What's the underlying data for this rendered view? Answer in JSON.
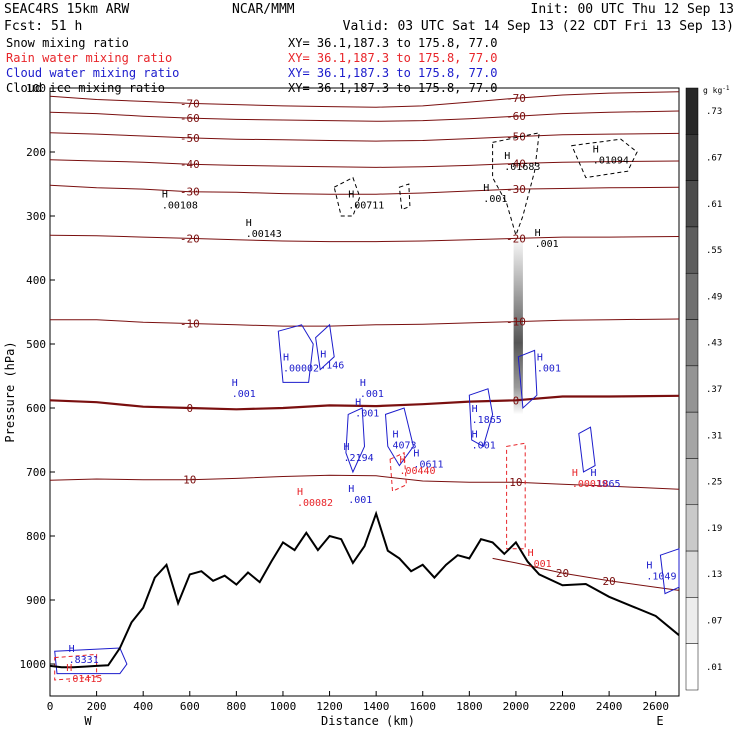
{
  "header": {
    "left1": "SEAC4RS 15km ARW",
    "left2": "Fcst:   51 h",
    "center": "NCAR/MMM",
    "init": "Init: 00 UTC Thu 12 Sep 13",
    "valid": "Valid: 03 UTC Sat 14 Sep 13 (22 CDT Fri 13 Sep 13)"
  },
  "fields": [
    {
      "name": "Snow mixing ratio",
      "xy": "XY=  36.1,187.3 to 175.8, 77.0",
      "color": "#000000"
    },
    {
      "name": "Rain water mixing ratio",
      "xy": "XY=  36.1,187.3 to 175.8, 77.0",
      "color": "#e8252a"
    },
    {
      "name": "Cloud water mixing ratio",
      "xy": "XY=  36.1,187.3 to 175.8, 77.0",
      "color": "#1c1ccc"
    },
    {
      "name": "Cloud ice mixing ratio",
      "xy": "XY=  36.1,187.3 to 175.8, 77.0",
      "color": "#000000"
    }
  ],
  "colors": {
    "temperature": "#7a0f0f",
    "terrain": "#000000",
    "cloud_water": "#1c1ccc",
    "rain": "#e8252a",
    "snow": "#000000"
  },
  "colorbar": {
    "unit": "g kg",
    "unit_exp": "-1",
    "ticks": [
      ".73",
      ".67",
      ".61",
      ".55",
      ".49",
      ".43",
      ".37",
      ".31",
      ".25",
      ".19",
      ".13",
      ".07",
      ".01"
    ]
  },
  "chart_data": {
    "type": "contour",
    "xlabel": "Distance (km)",
    "ylabel": "Pressure (hPa)",
    "xlim": [
      0,
      2700
    ],
    "ylim": [
      1050,
      100
    ],
    "x_ticks": [
      0,
      200,
      400,
      600,
      800,
      1000,
      1200,
      1400,
      1600,
      1800,
      2000,
      2200,
      2400,
      2600
    ],
    "y_ticks": [
      200,
      300,
      400,
      500,
      600,
      700,
      800,
      900,
      1000
    ],
    "endpoints": {
      "left": "W",
      "right": "E"
    },
    "top_y_label": "100",
    "isotherms": [
      {
        "value": -70,
        "points": [
          [
            0,
            113
          ],
          [
            200,
            118
          ],
          [
            400,
            121
          ],
          [
            600,
            124
          ],
          [
            800,
            126
          ],
          [
            1000,
            128
          ],
          [
            1200,
            129
          ],
          [
            1400,
            130
          ],
          [
            1600,
            128
          ],
          [
            1800,
            122
          ],
          [
            2000,
            116
          ],
          [
            2200,
            111
          ],
          [
            2400,
            108
          ],
          [
            2700,
            106
          ]
        ]
      },
      {
        "value": -60,
        "points": [
          [
            0,
            138
          ],
          [
            200,
            140
          ],
          [
            400,
            144
          ],
          [
            600,
            147
          ],
          [
            800,
            149
          ],
          [
            1000,
            150
          ],
          [
            1200,
            151
          ],
          [
            1400,
            152
          ],
          [
            1600,
            151
          ],
          [
            1800,
            148
          ],
          [
            2000,
            144
          ],
          [
            2200,
            140
          ],
          [
            2400,
            138
          ],
          [
            2700,
            136
          ]
        ]
      },
      {
        "value": -50,
        "points": [
          [
            0,
            170
          ],
          [
            200,
            172
          ],
          [
            400,
            175
          ],
          [
            600,
            178
          ],
          [
            800,
            180
          ],
          [
            1000,
            181
          ],
          [
            1200,
            182
          ],
          [
            1400,
            183
          ],
          [
            1600,
            182
          ],
          [
            1800,
            179
          ],
          [
            2000,
            176
          ],
          [
            2200,
            173
          ],
          [
            2400,
            172
          ],
          [
            2700,
            171
          ]
        ]
      },
      {
        "value": -40,
        "points": [
          [
            0,
            212
          ],
          [
            200,
            214
          ],
          [
            400,
            216
          ],
          [
            600,
            219
          ],
          [
            800,
            221
          ],
          [
            1000,
            222
          ],
          [
            1200,
            223
          ],
          [
            1400,
            224
          ],
          [
            1600,
            223
          ],
          [
            1800,
            221
          ],
          [
            2000,
            218
          ],
          [
            2200,
            216
          ],
          [
            2400,
            215
          ],
          [
            2700,
            214
          ]
        ]
      },
      {
        "value": -30,
        "points": [
          [
            0,
            252
          ],
          [
            200,
            256
          ],
          [
            400,
            258
          ],
          [
            600,
            262
          ],
          [
            800,
            263
          ],
          [
            1000,
            265
          ],
          [
            1200,
            266
          ],
          [
            1400,
            266
          ],
          [
            1600,
            264
          ],
          [
            1800,
            261
          ],
          [
            2000,
            258
          ],
          [
            2200,
            257
          ],
          [
            2400,
            256
          ],
          [
            2700,
            255
          ]
        ]
      },
      {
        "value": -20,
        "points": [
          [
            0,
            330
          ],
          [
            200,
            331
          ],
          [
            400,
            333
          ],
          [
            600,
            335
          ],
          [
            800,
            337
          ],
          [
            1000,
            339
          ],
          [
            1200,
            340
          ],
          [
            1400,
            340
          ],
          [
            1600,
            339
          ],
          [
            1800,
            337
          ],
          [
            2000,
            335
          ],
          [
            2200,
            333
          ],
          [
            2400,
            333
          ],
          [
            2700,
            332
          ]
        ]
      },
      {
        "value": -10,
        "points": [
          [
            0,
            462
          ],
          [
            200,
            462
          ],
          [
            400,
            466
          ],
          [
            600,
            468
          ],
          [
            800,
            470
          ],
          [
            1000,
            472
          ],
          [
            1200,
            472
          ],
          [
            1400,
            470
          ],
          [
            1600,
            469
          ],
          [
            1800,
            467
          ],
          [
            2000,
            465
          ],
          [
            2200,
            463
          ],
          [
            2400,
            462
          ],
          [
            2700,
            461
          ]
        ]
      },
      {
        "value": 0,
        "points": [
          [
            0,
            588
          ],
          [
            200,
            591
          ],
          [
            400,
            598
          ],
          [
            600,
            600
          ],
          [
            800,
            602
          ],
          [
            1000,
            600
          ],
          [
            1200,
            596
          ],
          [
            1400,
            597
          ],
          [
            1600,
            594
          ],
          [
            1800,
            590
          ],
          [
            2000,
            588
          ],
          [
            2200,
            582
          ],
          [
            2400,
            582
          ],
          [
            2700,
            581
          ]
        ]
      },
      {
        "value": 10,
        "points": [
          [
            0,
            713
          ],
          [
            200,
            711
          ],
          [
            400,
            712
          ],
          [
            600,
            712
          ],
          [
            800,
            710
          ],
          [
            1000,
            707
          ],
          [
            1200,
            705
          ],
          [
            1400,
            706
          ],
          [
            1600,
            714
          ],
          [
            1800,
            716
          ],
          [
            2000,
            716
          ],
          [
            2200,
            719
          ],
          [
            2400,
            722
          ],
          [
            2700,
            727
          ]
        ]
      },
      {
        "value": 20,
        "points": [
          [
            1900,
            835
          ],
          [
            2000,
            842
          ],
          [
            2200,
            858
          ],
          [
            2400,
            870
          ],
          [
            2600,
            880
          ],
          [
            2700,
            885
          ]
        ]
      }
    ],
    "terrain": [
      [
        0,
        1003
      ],
      [
        50,
        1005
      ],
      [
        100,
        1005
      ],
      [
        150,
        1004
      ],
      [
        200,
        1003
      ],
      [
        250,
        1002
      ],
      [
        300,
        975
      ],
      [
        350,
        935
      ],
      [
        400,
        912
      ],
      [
        450,
        865
      ],
      [
        500,
        845
      ],
      [
        550,
        905
      ],
      [
        600,
        860
      ],
      [
        650,
        855
      ],
      [
        700,
        870
      ],
      [
        750,
        862
      ],
      [
        800,
        876
      ],
      [
        850,
        857
      ],
      [
        900,
        872
      ],
      [
        950,
        840
      ],
      [
        1000,
        810
      ],
      [
        1050,
        822
      ],
      [
        1100,
        795
      ],
      [
        1150,
        822
      ],
      [
        1200,
        800
      ],
      [
        1250,
        805
      ],
      [
        1300,
        842
      ],
      [
        1350,
        816
      ],
      [
        1400,
        765
      ],
      [
        1450,
        823
      ],
      [
        1500,
        835
      ],
      [
        1550,
        855
      ],
      [
        1600,
        845
      ],
      [
        1650,
        865
      ],
      [
        1700,
        845
      ],
      [
        1750,
        830
      ],
      [
        1800,
        835
      ],
      [
        1850,
        805
      ],
      [
        1900,
        810
      ],
      [
        1950,
        828
      ],
      [
        2000,
        810
      ],
      [
        2050,
        840
      ],
      [
        2100,
        860
      ],
      [
        2200,
        877
      ],
      [
        2300,
        875
      ],
      [
        2400,
        895
      ],
      [
        2500,
        910
      ],
      [
        2600,
        925
      ],
      [
        2700,
        955
      ]
    ],
    "maxima": [
      {
        "field": "snow",
        "x": 480,
        "y": 285,
        "value": ".00108"
      },
      {
        "field": "snow",
        "x": 840,
        "y": 330,
        "value": ".00143"
      },
      {
        "field": "snow",
        "x": 1280,
        "y": 285,
        "value": ".00711"
      },
      {
        "field": "snow",
        "x": 1860,
        "y": 275,
        "value": ".001"
      },
      {
        "field": "snow",
        "x": 1950,
        "y": 225,
        "value": ".01683"
      },
      {
        "field": "snow",
        "x": 2330,
        "y": 215,
        "value": ".01094"
      },
      {
        "field": "snow",
        "x": 2080,
        "y": 345,
        "value": ".001"
      },
      {
        "field": "cloud",
        "x": 1000,
        "y": 540,
        "value": ".00002"
      },
      {
        "field": "cloud",
        "x": 780,
        "y": 580,
        "value": ".001"
      },
      {
        "field": "cloud",
        "x": 1160,
        "y": 535,
        "value": ".146"
      },
      {
        "field": "cloud",
        "x": 1330,
        "y": 580,
        "value": ".001"
      },
      {
        "field": "cloud",
        "x": 1310,
        "y": 610,
        "value": ".001"
      },
      {
        "field": "cloud",
        "x": 1260,
        "y": 680,
        "value": ".2194"
      },
      {
        "field": "cloud",
        "x": 1470,
        "y": 660,
        "value": "4073"
      },
      {
        "field": "cloud",
        "x": 1560,
        "y": 690,
        "value": ".0611"
      },
      {
        "field": "cloud",
        "x": 1280,
        "y": 745,
        "value": ".001"
      },
      {
        "field": "cloud",
        "x": 1810,
        "y": 620,
        "value": ".1865"
      },
      {
        "field": "cloud",
        "x": 1810,
        "y": 660,
        "value": ".001"
      },
      {
        "field": "cloud",
        "x": 2090,
        "y": 540,
        "value": ".001"
      },
      {
        "field": "cloud",
        "x": 2320,
        "y": 720,
        "value": ".1865"
      },
      {
        "field": "cloud",
        "x": 2560,
        "y": 865,
        "value": ".1049"
      },
      {
        "field": "cloud",
        "x": 80,
        "y": 995,
        "value": ".8331"
      },
      {
        "field": "rain",
        "x": 1500,
        "y": 700,
        "value": ".00440"
      },
      {
        "field": "rain",
        "x": 2240,
        "y": 720,
        "value": ".00019"
      },
      {
        "field": "rain",
        "x": 1060,
        "y": 750,
        "value": ".00082"
      },
      {
        "field": "rain",
        "x": 2050,
        "y": 845,
        "value": ".001"
      },
      {
        "field": "rain",
        "x": 70,
        "y": 1025,
        "value": ".01415"
      }
    ]
  }
}
